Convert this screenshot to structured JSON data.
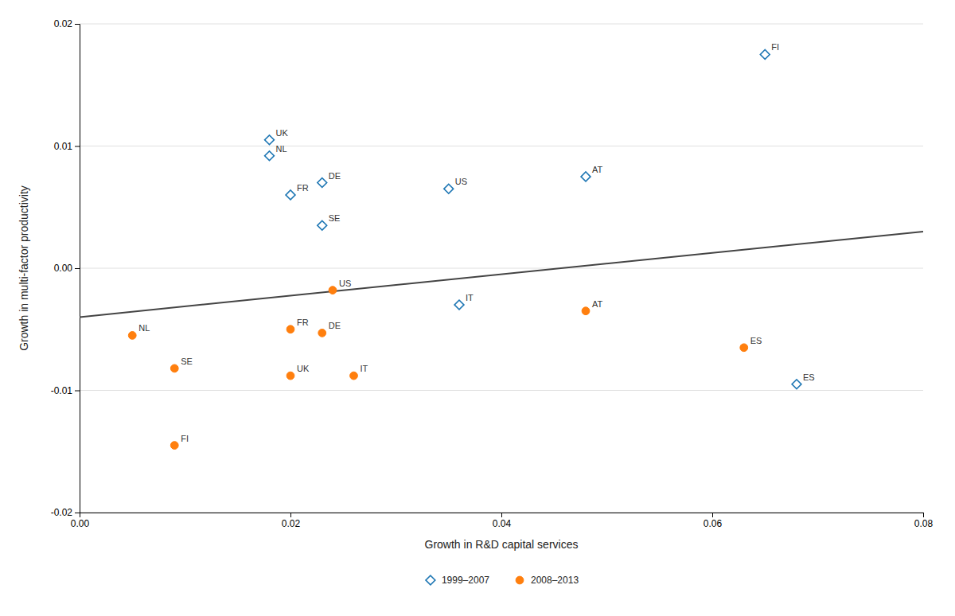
{
  "chart_data": {
    "type": "scatter",
    "xlabel": "Growth in R&D capital services",
    "ylabel": "Growth in multi-factor productivity",
    "xlim": [
      0.0,
      0.08
    ],
    "ylim": [
      -0.02,
      0.02
    ],
    "xticks": [
      {
        "value": 0.0,
        "label": "0.00"
      },
      0.02,
      0.04,
      0.06,
      0.08
    ],
    "yticks": [
      -0.02,
      -0.01,
      {
        "value": 0.0,
        "label": "0.00"
      },
      0.01,
      0.02
    ],
    "grid": "y",
    "legend": "bottom",
    "series": [
      {
        "name": "1999–2007",
        "marker": "diamond",
        "labels": [
          "AT",
          "FI",
          "FR",
          "DE",
          "IT",
          "NL",
          "ES",
          "SE",
          "UK",
          "US"
        ],
        "x": [
          0.048,
          0.065,
          0.02,
          0.023,
          0.036,
          0.018,
          0.068,
          0.023,
          0.018,
          0.035
        ],
        "values": [
          0.0075,
          0.0175,
          0.006,
          0.007,
          -0.003,
          0.0092,
          -0.0095,
          0.0035,
          0.0105,
          0.0065
        ]
      },
      {
        "name": "2008–2013",
        "marker": "circle",
        "labels": [
          "AT",
          "FI",
          "FR",
          "DE",
          "IT",
          "NL",
          "ES",
          "SE",
          "UK",
          "US"
        ],
        "x": [
          0.048,
          0.009,
          0.02,
          0.023,
          0.026,
          0.005,
          0.063,
          0.009,
          0.02,
          0.024
        ],
        "values": [
          -0.0035,
          -0.0145,
          -0.005,
          -0.0053,
          -0.0088,
          -0.0055,
          -0.0065,
          -0.0082,
          -0.0088,
          -0.0018
        ]
      },
      {
        "type": "line",
        "x": [
          0.0,
          0.08
        ],
        "values": [
          -0.004,
          0.003
        ]
      }
    ]
  }
}
